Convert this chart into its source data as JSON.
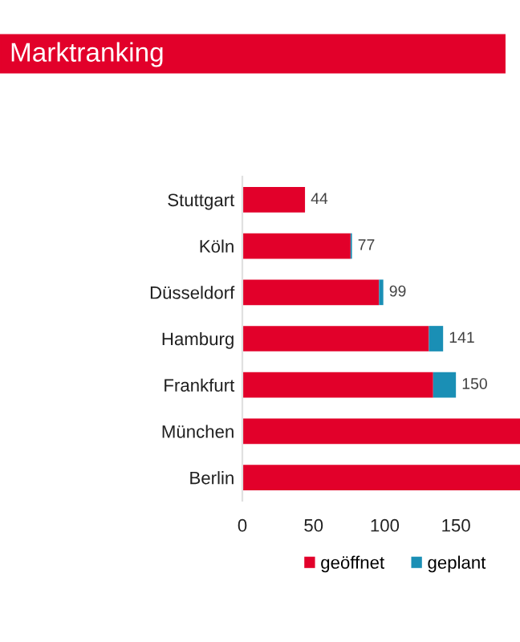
{
  "chart_data": {
    "type": "bar",
    "orientation": "horizontal",
    "stacked": true,
    "title": "Marktranking",
    "categories": [
      "Stuttgart",
      "Köln",
      "Düsseldorf",
      "Hamburg",
      "Frankfurt",
      "München",
      "Berlin"
    ],
    "series": [
      {
        "name": "geöffnet",
        "color": "#e2002a",
        "values": [
          44,
          76,
          96,
          131,
          134,
          195,
          195
        ]
      },
      {
        "name": "geplant",
        "color": "#1a8fb5",
        "values": [
          0,
          1,
          3,
          10,
          16,
          null,
          null
        ]
      }
    ],
    "totals": [
      "44",
      "77",
      "99",
      "141",
      "150",
      null,
      null
    ],
    "xlim": [
      0,
      195
    ],
    "xticks": [
      0,
      50,
      100,
      150
    ],
    "grid": false,
    "legend": "bottom"
  }
}
